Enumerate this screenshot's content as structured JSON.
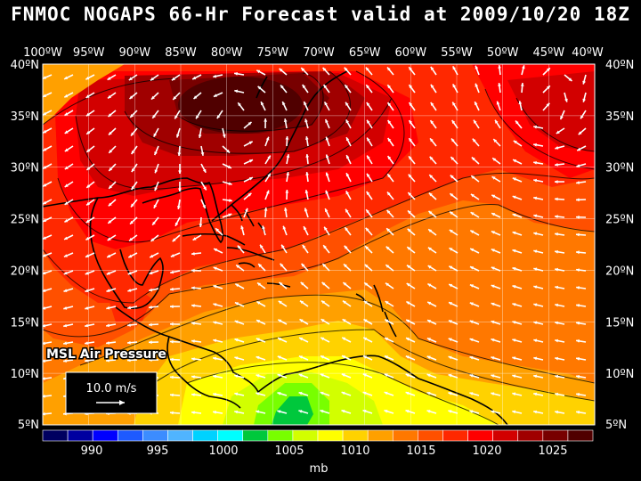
{
  "title": "FNMOC NOGAPS 66-Hr Forecast valid at 2009/10/20 18Z",
  "layer_label": "MSL Air Pressure",
  "reference_vector": "10.0 m/s",
  "lon_ticks": [
    "100ºW",
    "95ºW",
    "90ºW",
    "85ºW",
    "80ºW",
    "75ºW",
    "70ºW",
    "65ºW",
    "60ºW",
    "55ºW",
    "50ºW",
    "45ºW",
    "40ºW"
  ],
  "lat_ticks": [
    "40ºN",
    "35ºN",
    "30ºN",
    "25ºN",
    "20ºN",
    "15ºN",
    "10ºN",
    "5ºN"
  ],
  "colorbar": {
    "unit": "mb",
    "labels": [
      "990",
      "995",
      "1000",
      "1005",
      "1010",
      "1015",
      "1020",
      "1025"
    ],
    "colors": [
      "#000060",
      "#0000a0",
      "#0000ff",
      "#1e5aff",
      "#3c8cff",
      "#50b4ff",
      "#00d2ff",
      "#00ffff",
      "#00c83c",
      "#78ff00",
      "#d2ff00",
      "#ffff00",
      "#ffd200",
      "#ffa000",
      "#ff7800",
      "#ff5000",
      "#ff2800",
      "#ff0000",
      "#d20000",
      "#a00000",
      "#780000",
      "#500000"
    ]
  }
}
